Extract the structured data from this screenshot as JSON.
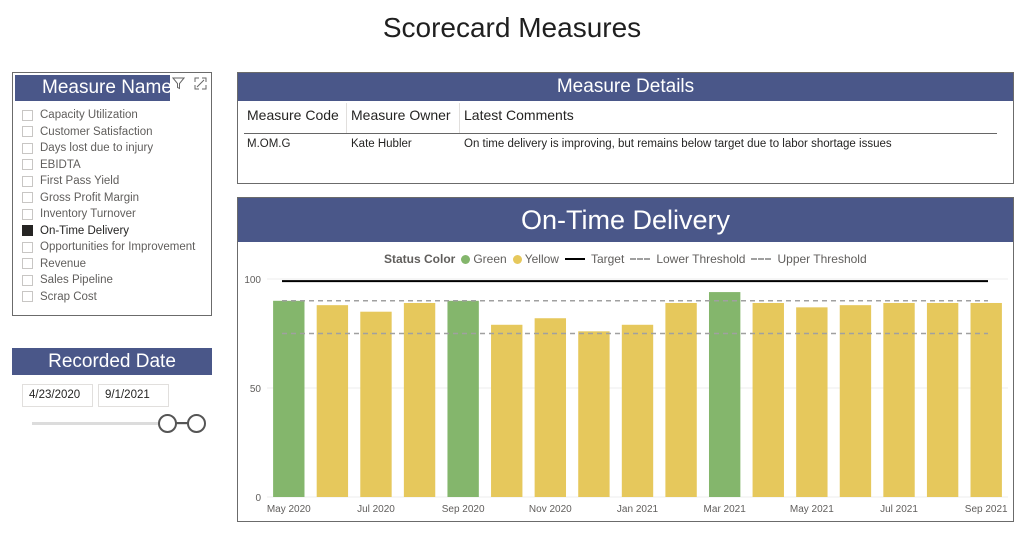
{
  "page": {
    "title": "Scorecard Measures"
  },
  "measure_slicer": {
    "title": "Measure Name",
    "filter_icon": "filter-icon",
    "focus_icon": "focus-mode-icon",
    "items": [
      {
        "label": "Capacity Utilization",
        "checked": false
      },
      {
        "label": "Customer Satisfaction",
        "checked": false
      },
      {
        "label": "Days lost due to injury",
        "checked": false
      },
      {
        "label": "EBIDTA",
        "checked": false
      },
      {
        "label": "First Pass Yield",
        "checked": false
      },
      {
        "label": "Gross Profit Margin",
        "checked": false
      },
      {
        "label": "Inventory Turnover",
        "checked": false
      },
      {
        "label": "On-Time Delivery",
        "checked": true
      },
      {
        "label": "Opportunities for Improvement",
        "checked": false
      },
      {
        "label": "Revenue",
        "checked": false
      },
      {
        "label": "Sales Pipeline",
        "checked": false
      },
      {
        "label": "Scrap Cost",
        "checked": false
      }
    ]
  },
  "date_slicer": {
    "title": "Recorded Date",
    "start": "4/23/2020",
    "end": "9/1/2021"
  },
  "details": {
    "title": "Measure Details",
    "columns": [
      "Measure Code",
      "Measure Owner",
      "Latest Comments"
    ],
    "rows": [
      [
        "M.OM.G",
        "Kate Hubler",
        "On time delivery is improving, but remains below target due to labor shortage issues"
      ]
    ]
  },
  "chart": {
    "title": "On-Time Delivery",
    "legend": {
      "title": "Status Color",
      "items": [
        "Green",
        "Yellow",
        "Target",
        "Lower Threshold",
        "Upper Threshold"
      ]
    }
  },
  "colors": {
    "header_bg": "#4a5789",
    "green": "#84b66c",
    "yellow": "#e6c85c",
    "target": "#000000",
    "threshold": "#a0a0a0"
  },
  "chart_data": {
    "type": "bar",
    "categories": [
      "May 2020",
      "Jun 2020",
      "Jul 2020",
      "Aug 2020",
      "Sep 2020",
      "Oct 2020",
      "Nov 2020",
      "Dec 2020",
      "Jan 2021",
      "Feb 2021",
      "Mar 2021",
      "Apr 2021",
      "May 2021",
      "Jun 2021",
      "Jul 2021",
      "Aug 2021",
      "Sep 2021"
    ],
    "x_tick_labels": [
      "May 2020",
      "Jul 2020",
      "Sep 2020",
      "Nov 2020",
      "Jan 2021",
      "Mar 2021",
      "May 2021",
      "Jul 2021",
      "Sep 2021"
    ],
    "values": [
      90,
      88,
      85,
      89,
      90,
      79,
      82,
      76,
      79,
      89,
      94,
      89,
      87,
      88,
      89,
      89,
      89
    ],
    "status": [
      "Green",
      "Yellow",
      "Yellow",
      "Yellow",
      "Green",
      "Yellow",
      "Yellow",
      "Yellow",
      "Yellow",
      "Yellow",
      "Green",
      "Yellow",
      "Yellow",
      "Yellow",
      "Yellow",
      "Yellow",
      "Yellow"
    ],
    "target": 99,
    "lower_threshold": 75,
    "upper_threshold": 90,
    "ylim": [
      0,
      100
    ],
    "y_ticks": [
      0,
      50,
      100
    ],
    "grid": true,
    "legend_position": "top"
  }
}
